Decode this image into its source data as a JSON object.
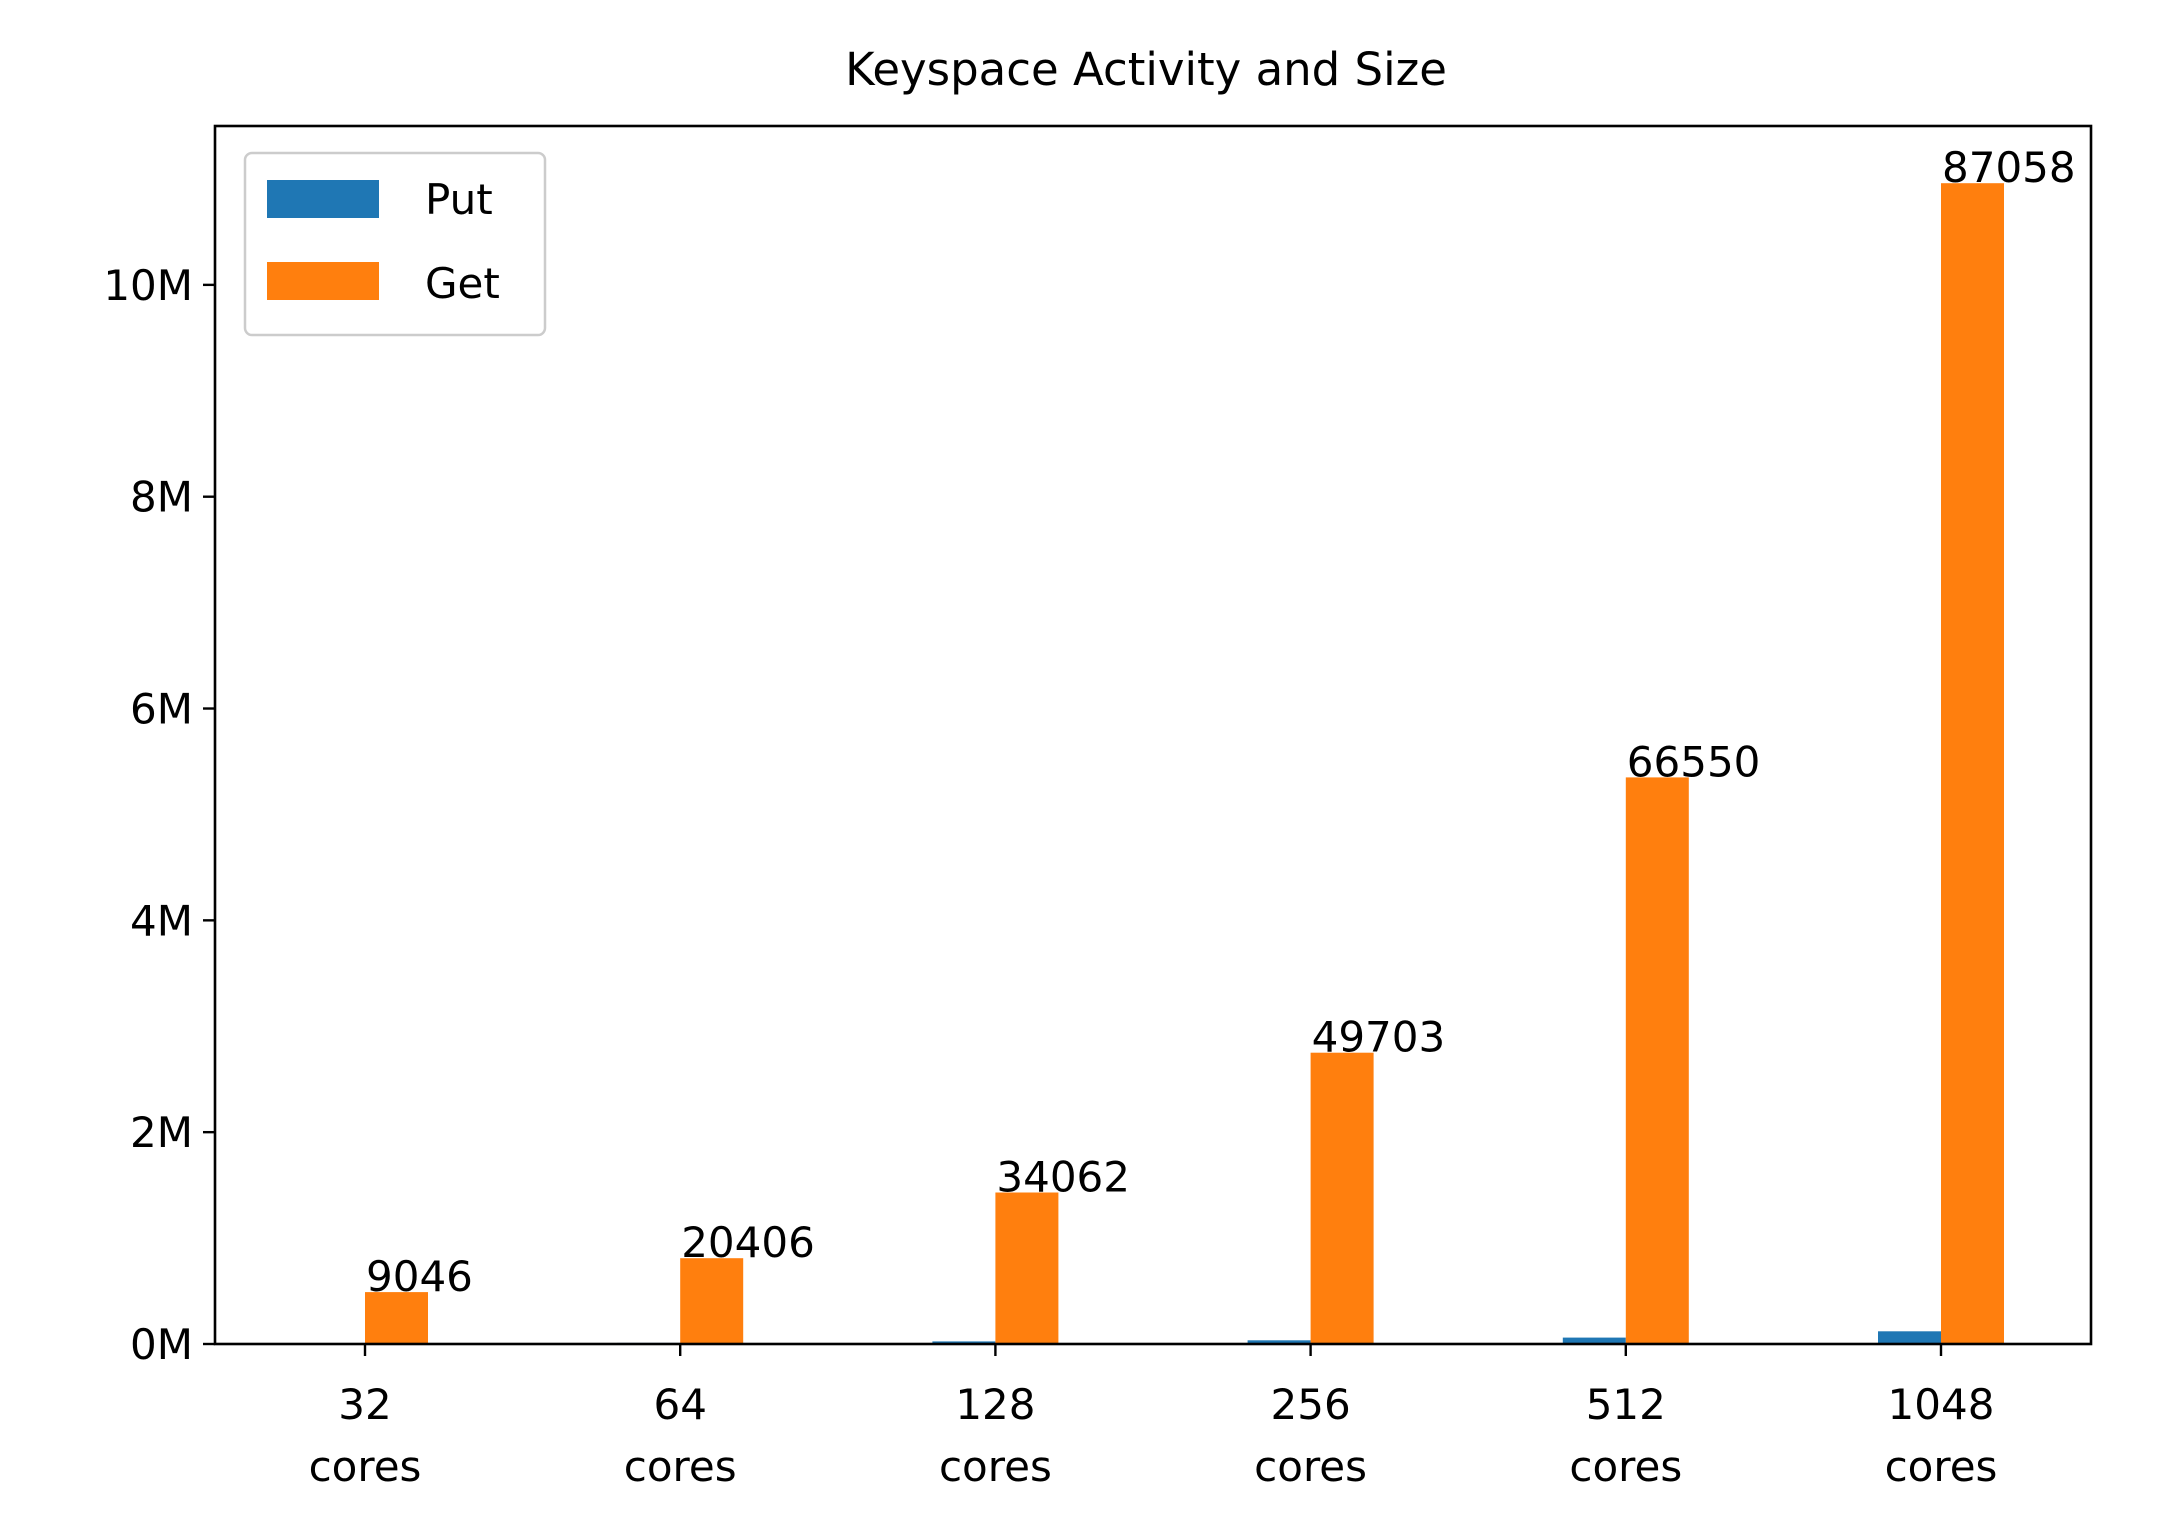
{
  "chart_data": {
    "type": "bar",
    "title": "Keyspace Activity and Size",
    "xlabel": "",
    "ylabel": "",
    "categories": [
      "32\ncores",
      "64\ncores",
      "128\ncores",
      "256\ncores",
      "512\ncores",
      "1048\ncores"
    ],
    "series": [
      {
        "name": "Put",
        "color": "#1f77b4",
        "values": [
          5000,
          10000,
          25000,
          35000,
          60000,
          120000
        ]
      },
      {
        "name": "Get",
        "color": "#ff7f0e",
        "values": [
          490000,
          810000,
          1430000,
          2750000,
          5350000,
          10960000
        ]
      }
    ],
    "bar_labels": [
      "9046",
      "20406",
      "34062",
      "49703",
      "66550",
      "87058"
    ],
    "ylim": [
      0,
      11500000
    ],
    "y_ticks": [
      {
        "value": 0,
        "label": "0M"
      },
      {
        "value": 2000000,
        "label": "2M"
      },
      {
        "value": 4000000,
        "label": "4M"
      },
      {
        "value": 6000000,
        "label": "6M"
      },
      {
        "value": 8000000,
        "label": "8M"
      },
      {
        "value": 10000000,
        "label": "10M"
      }
    ],
    "legend_position": "upper-left",
    "grid": false
  }
}
